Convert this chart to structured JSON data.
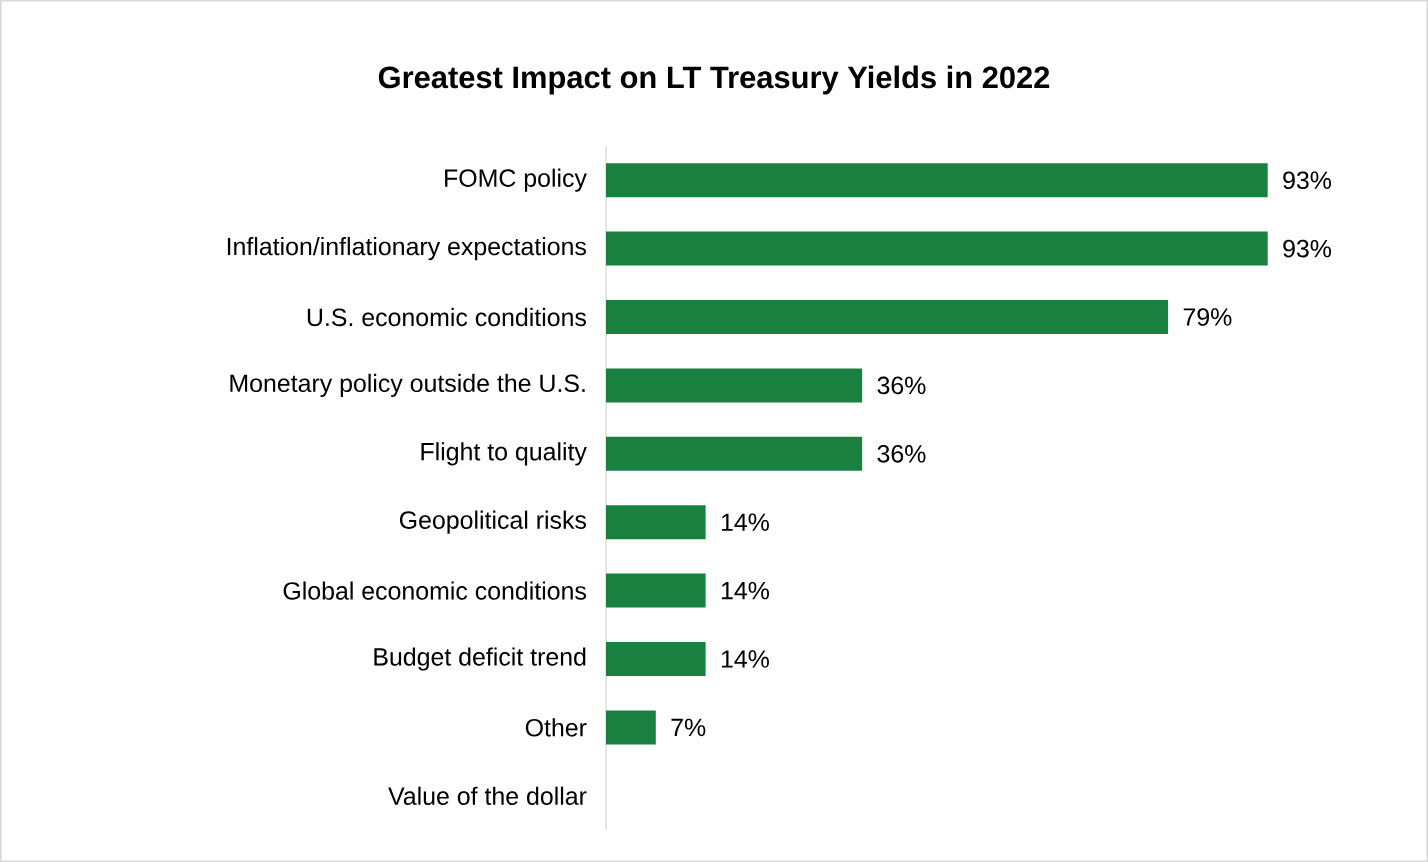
{
  "chart_data": {
    "type": "bar",
    "orientation": "horizontal",
    "title": "Greatest Impact on LT Treasury Yields in 2022",
    "categories": [
      "FOMC policy",
      "Inflation/inflationary expectations",
      "U.S. economic conditions",
      "Monetary policy outside the U.S.",
      "Flight to quality",
      "Geopolitical risks",
      "Global economic conditions",
      "Budget deficit trend",
      "Other",
      "Value of the dollar"
    ],
    "values": [
      93,
      93,
      79,
      36,
      36,
      14,
      14,
      14,
      7,
      0
    ],
    "value_labels": [
      "93%",
      "93%",
      "79%",
      "36%",
      "36%",
      "14%",
      "14%",
      "14%",
      "7%",
      null
    ],
    "color": "#1a8040"
  }
}
